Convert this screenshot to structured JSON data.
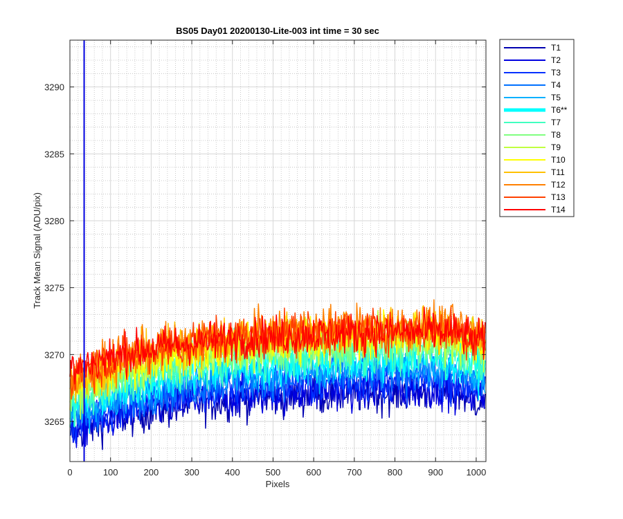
{
  "chart_data": {
    "type": "line",
    "title": "BS05 Day01 20200130-Lite-003 int time = 30 sec",
    "xlabel": "Pixels",
    "ylabel": "Track Mean Signal (ADU/pix)",
    "xlim": [
      0,
      1024
    ],
    "ylim": [
      3262,
      3293.5
    ],
    "xticks": [
      0,
      100,
      200,
      300,
      400,
      500,
      600,
      700,
      800,
      900,
      1000
    ],
    "yticks": [
      3265,
      3270,
      3275,
      3280,
      3285,
      3290
    ],
    "grid": true,
    "minor_grid": true,
    "legend_position": "outside-top-right",
    "series": [
      {
        "name": "T1",
        "color": "#0000b0",
        "start": 3264.0,
        "plateau": 3267.3,
        "noise": 1.2,
        "highlight": false
      },
      {
        "name": "T2",
        "color": "#0000e0",
        "start": 3264.2,
        "plateau": 3267.6,
        "noise": 1.2,
        "highlight": false
      },
      {
        "name": "T3",
        "color": "#0030ff",
        "start": 3264.6,
        "plateau": 3268.2,
        "noise": 1.2,
        "highlight": false
      },
      {
        "name": "T4",
        "color": "#0070ff",
        "start": 3265.0,
        "plateau": 3268.8,
        "noise": 1.2,
        "highlight": false
      },
      {
        "name": "T5",
        "color": "#00b0ff",
        "start": 3265.5,
        "plateau": 3269.3,
        "noise": 1.2,
        "highlight": false
      },
      {
        "name": "T6**",
        "color": "#00ffff",
        "start": 3265.9,
        "plateau": 3269.8,
        "noise": 1.3,
        "highlight": true
      },
      {
        "name": "T7",
        "color": "#40ffc0",
        "start": 3266.3,
        "plateau": 3270.4,
        "noise": 1.3,
        "highlight": false
      },
      {
        "name": "T8",
        "color": "#80ff80",
        "start": 3266.7,
        "plateau": 3271.0,
        "noise": 1.3,
        "highlight": false
      },
      {
        "name": "T9",
        "color": "#c0ff40",
        "start": 3267.0,
        "plateau": 3271.3,
        "noise": 1.3,
        "highlight": false
      },
      {
        "name": "T10",
        "color": "#ffff00",
        "start": 3267.4,
        "plateau": 3271.7,
        "noise": 1.3,
        "highlight": false
      },
      {
        "name": "T11",
        "color": "#ffc000",
        "start": 3267.8,
        "plateau": 3272.0,
        "noise": 1.3,
        "highlight": false
      },
      {
        "name": "T12",
        "color": "#ff8000",
        "start": 3268.1,
        "plateau": 3272.3,
        "noise": 1.3,
        "highlight": false
      },
      {
        "name": "T13",
        "color": "#ff4000",
        "start": 3268.4,
        "plateau": 3272.0,
        "noise": 1.3,
        "highlight": false
      },
      {
        "name": "T14",
        "color": "#ff0000",
        "start": 3268.8,
        "plateau": 3271.8,
        "noise": 1.2,
        "highlight": false
      }
    ],
    "annotations": [
      {
        "series": "T2",
        "x": 35,
        "type": "spike",
        "from": 3262,
        "to": 3293.5
      }
    ]
  }
}
